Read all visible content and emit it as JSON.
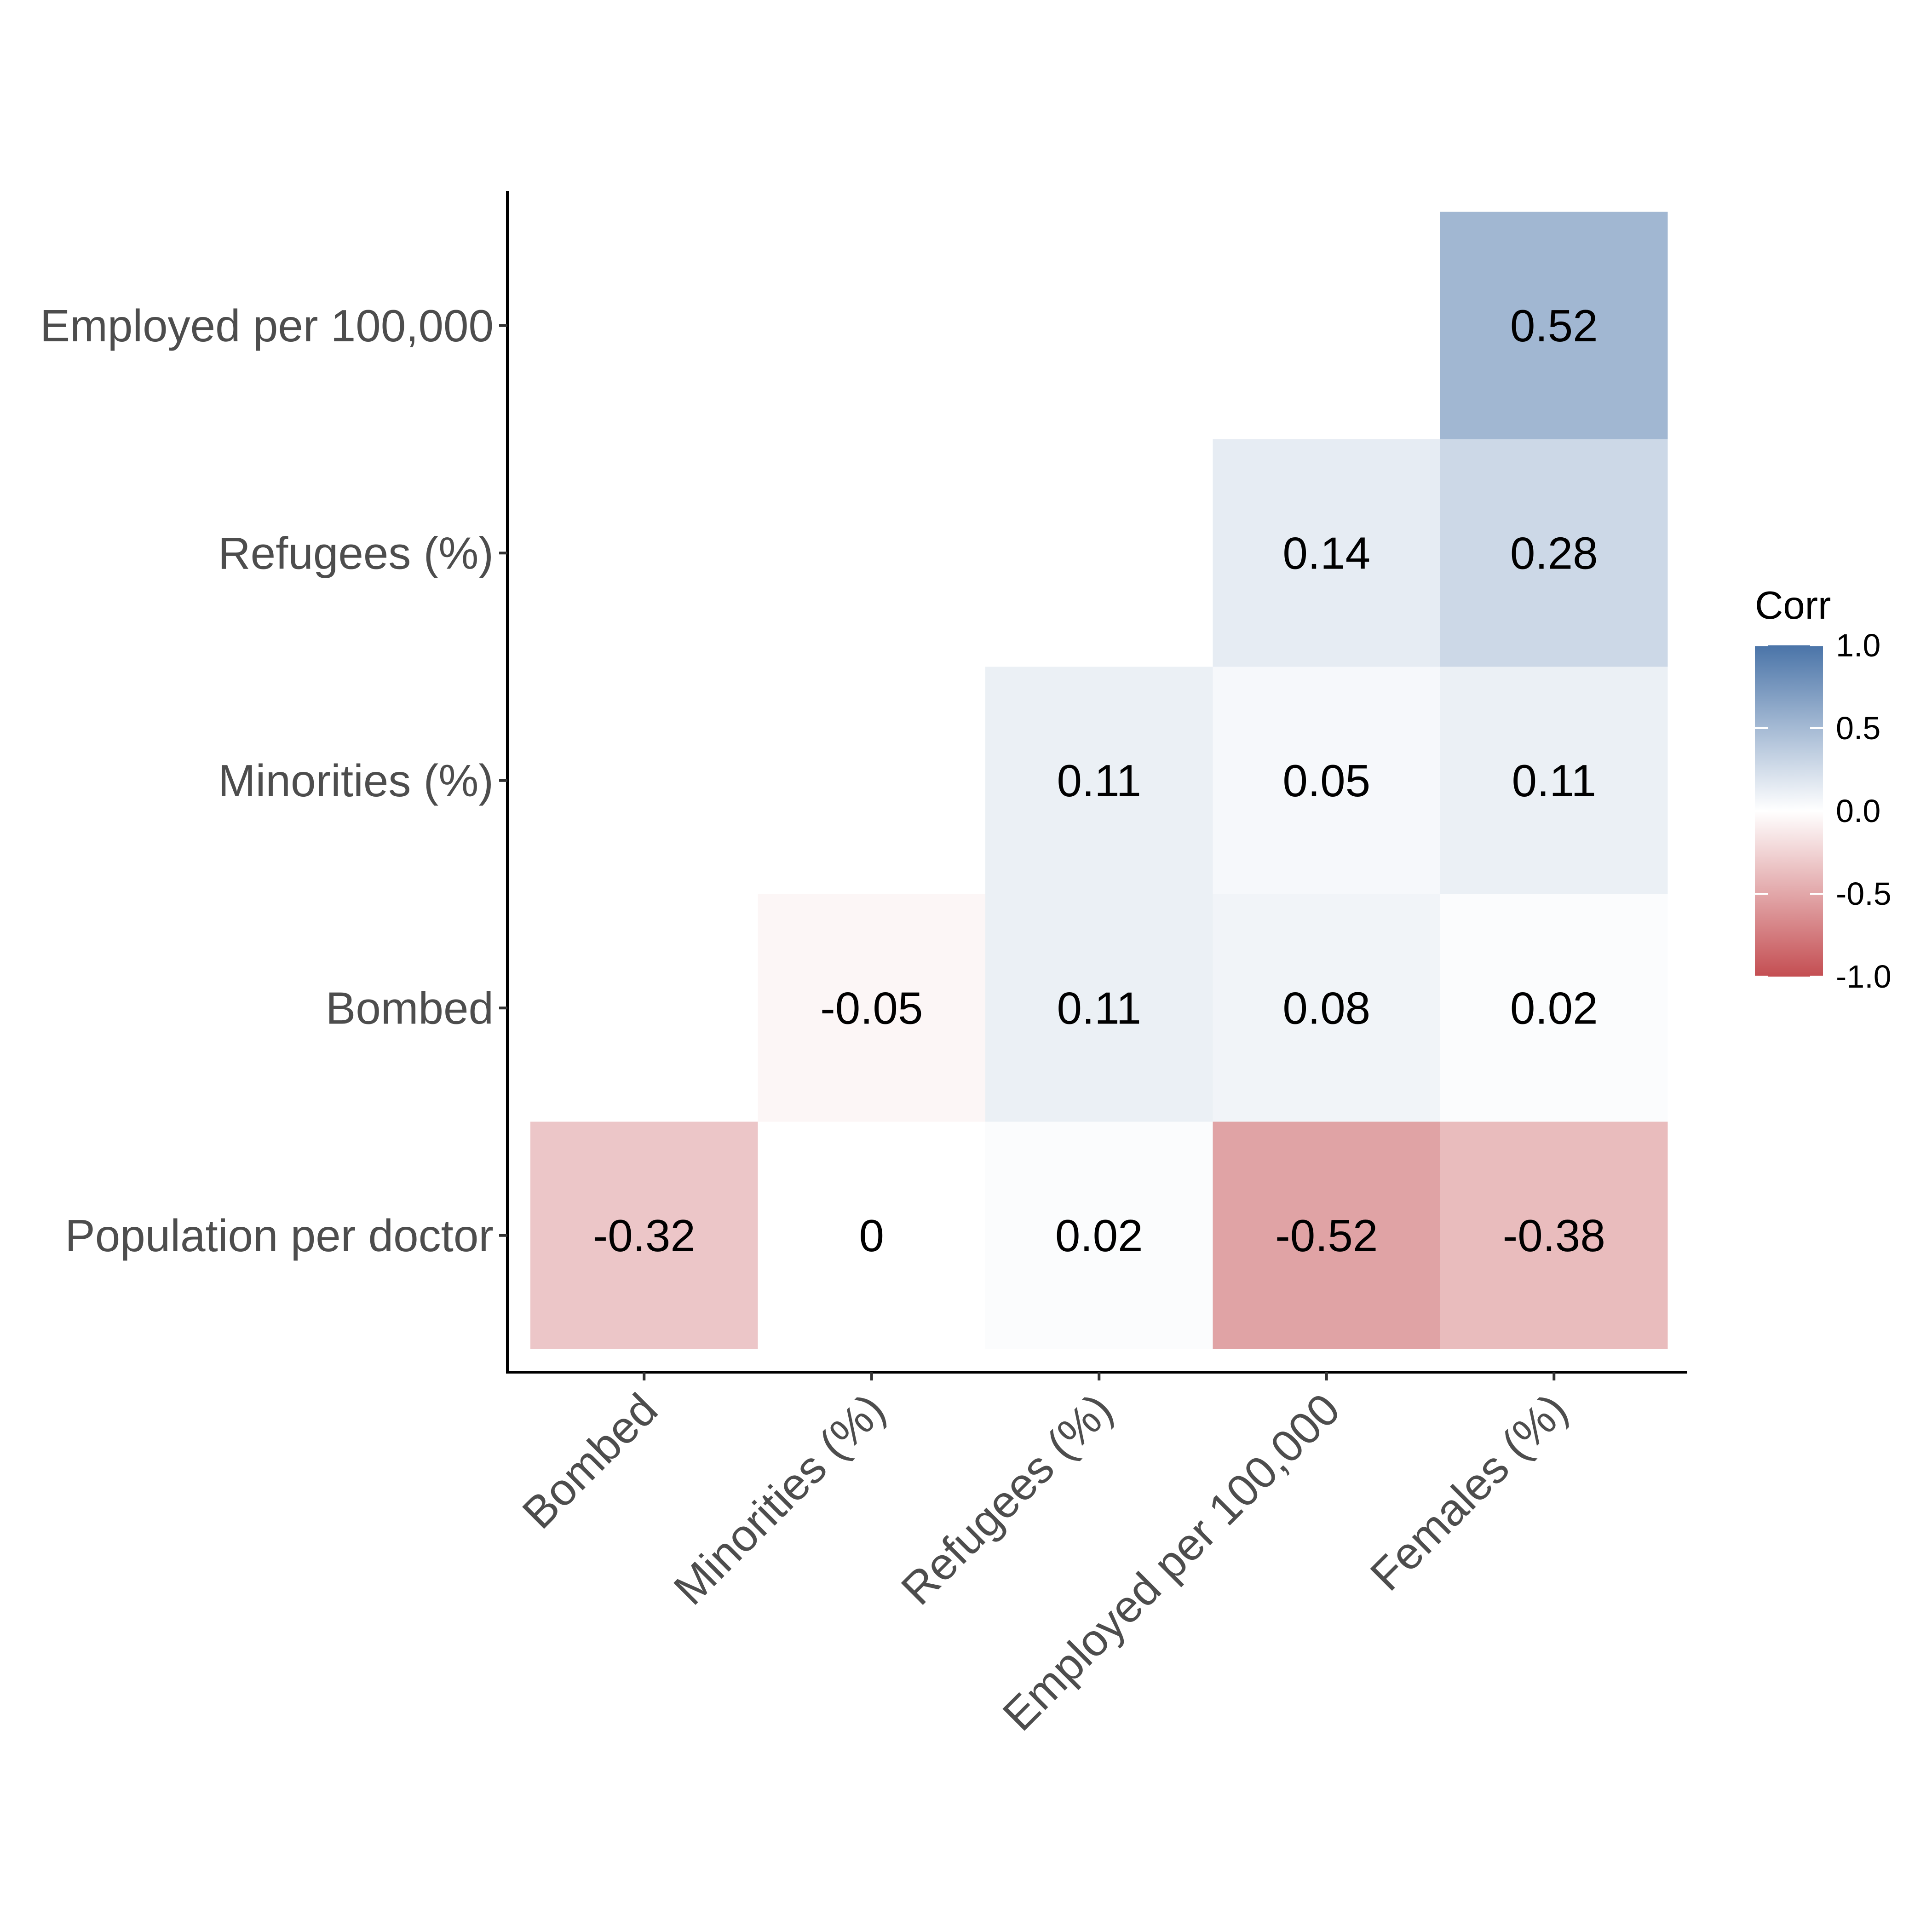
{
  "chart_data": {
    "type": "heatmap",
    "title": "",
    "xlabel": "",
    "ylabel": "",
    "x_categories": [
      "Bombed",
      "Minorities (%)",
      "Refugees (%)",
      "Employed per 100,000",
      "Females (%)"
    ],
    "y_categories": [
      "Population per doctor",
      "Bombed",
      "Minorities (%)",
      "Refugees (%)",
      "Employed per 100,000"
    ],
    "cells": [
      {
        "x": "Bombed",
        "y": "Population per doctor",
        "value": -0.32,
        "label": "-0.32"
      },
      {
        "x": "Minorities (%)",
        "y": "Population per doctor",
        "value": 0,
        "label": "0"
      },
      {
        "x": "Refugees (%)",
        "y": "Population per doctor",
        "value": 0.02,
        "label": "0.02"
      },
      {
        "x": "Employed per 100,000",
        "y": "Population per doctor",
        "value": -0.52,
        "label": "-0.52"
      },
      {
        "x": "Females (%)",
        "y": "Population per doctor",
        "value": -0.38,
        "label": "-0.38"
      },
      {
        "x": "Minorities (%)",
        "y": "Bombed",
        "value": -0.05,
        "label": "-0.05"
      },
      {
        "x": "Refugees (%)",
        "y": "Bombed",
        "value": 0.11,
        "label": "0.11"
      },
      {
        "x": "Employed per 100,000",
        "y": "Bombed",
        "value": 0.08,
        "label": "0.08"
      },
      {
        "x": "Females (%)",
        "y": "Bombed",
        "value": 0.02,
        "label": "0.02"
      },
      {
        "x": "Refugees (%)",
        "y": "Minorities (%)",
        "value": 0.11,
        "label": "0.11"
      },
      {
        "x": "Employed per 100,000",
        "y": "Minorities (%)",
        "value": 0.05,
        "label": "0.05"
      },
      {
        "x": "Females (%)",
        "y": "Minorities (%)",
        "value": 0.11,
        "label": "0.11"
      },
      {
        "x": "Employed per 100,000",
        "y": "Refugees (%)",
        "value": 0.14,
        "label": "0.14"
      },
      {
        "x": "Females (%)",
        "y": "Refugees (%)",
        "value": 0.28,
        "label": "0.28"
      },
      {
        "x": "Females (%)",
        "y": "Employed per 100,000",
        "value": 0.52,
        "label": "0.52"
      }
    ],
    "legend": {
      "title": "Corr",
      "placement": "right",
      "range": [
        -1,
        1
      ],
      "ticks": [
        {
          "value": 1.0,
          "label": "1.0"
        },
        {
          "value": 0.5,
          "label": "0.5"
        },
        {
          "value": 0.0,
          "label": "0.0"
        },
        {
          "value": -0.5,
          "label": "-0.5"
        },
        {
          "value": -1.0,
          "label": "-1.0"
        }
      ]
    },
    "colors": {
      "low": "#c44e52",
      "mid": "#ffffff",
      "high": "#4a74a8"
    }
  }
}
